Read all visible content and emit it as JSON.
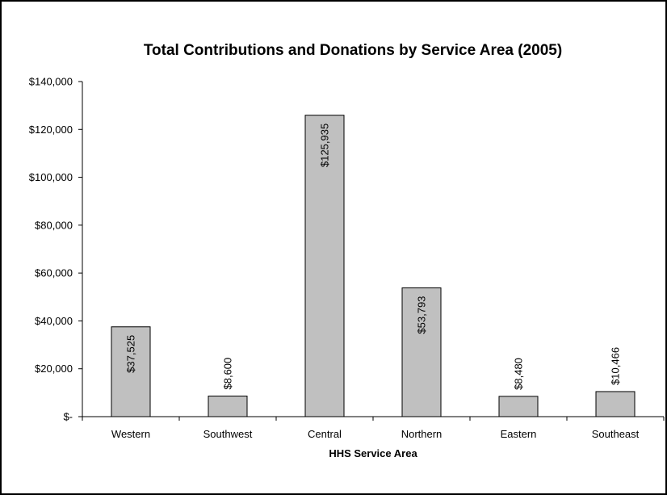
{
  "chart_data": {
    "type": "bar",
    "title": "Total Contributions and Donations by Service Area (2005)",
    "xlabel": "HHS Service Area",
    "ylabel": "",
    "categories": [
      "Western",
      "Southwest",
      "Central",
      "Northern",
      "Eastern",
      "Southeast"
    ],
    "values": [
      37525,
      8600,
      125935,
      53793,
      8480,
      10466
    ],
    "data_labels": [
      "$37,525",
      "$8,600",
      "$125,935",
      "$53,793",
      "$8,480",
      "$10,466"
    ],
    "ylim": [
      0,
      140000
    ],
    "yticks": [
      0,
      20000,
      40000,
      60000,
      80000,
      100000,
      120000,
      140000
    ],
    "ytick_labels": [
      "$-",
      "$20,000",
      "$40,000",
      "$60,000",
      "$80,000",
      "$100,000",
      "$120,000",
      "$140,000"
    ],
    "grid": false,
    "legend": "none",
    "colors": {
      "bar_fill": "#c0c0c0",
      "bar_stroke": "#000000",
      "axis": "#000000",
      "text": "#000000",
      "frame": "#000000"
    }
  }
}
